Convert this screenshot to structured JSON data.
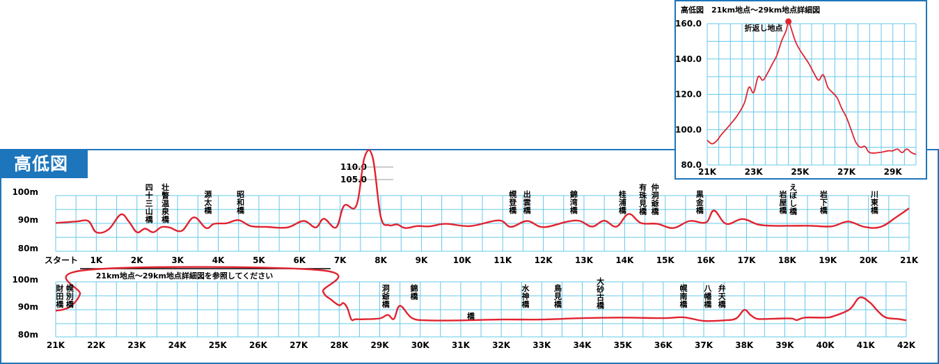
{
  "title": "高低図",
  "inset_title": "高低図　21km地点〜29km地点詳細図",
  "chart_data": [
    {
      "type": "line",
      "title": "",
      "x_tick_labels": [
        "スタート",
        "1K",
        "2K",
        "3K",
        "4K",
        "5K",
        "6K",
        "7K",
        "8K",
        "9K",
        "10K",
        "11K",
        "12K",
        "13K",
        "14K",
        "15K",
        "16K",
        "17K",
        "18K",
        "19K",
        "20K",
        "21K"
      ],
      "y_tick_labels": [
        "100m",
        "90m",
        "80m"
      ],
      "ylim": [
        80,
        100
      ],
      "xlim": [
        0,
        21
      ],
      "series_color": "#e02330",
      "x": [
        0,
        0.5,
        0.8,
        1,
        1.3,
        1.6,
        1.8,
        2,
        2.2,
        2.4,
        2.6,
        2.8,
        3.1,
        3.4,
        3.7,
        3.9,
        4.2,
        4.5,
        4.8,
        5.2,
        5.7,
        6.1,
        6.4,
        6.6,
        6.9,
        7.1,
        7.4,
        7.6,
        7.8,
        8,
        8.2,
        8.4,
        8.6,
        8.9,
        9.2,
        9.6,
        10.2,
        10.9,
        11.2,
        11.6,
        12,
        12.6,
        12.9,
        13.2,
        13.5,
        13.8,
        14.1,
        14.4,
        14.8,
        15.2,
        15.6,
        16,
        16.2,
        16.5,
        16.9,
        17.3,
        17.7,
        18.1,
        18.6,
        19.1,
        19.5,
        19.9,
        20.3,
        20.7,
        21
      ],
      "y": [
        88.8,
        89.3,
        89.5,
        85.5,
        86.5,
        91.8,
        89.3,
        85.5,
        86.8,
        85.5,
        87.3,
        87.2,
        86,
        90.8,
        87,
        88.5,
        88.7,
        89.8,
        87.7,
        87.4,
        87.2,
        89.5,
        87.2,
        90.3,
        87.2,
        95,
        95,
        108.5,
        108.5,
        91,
        88,
        88.3,
        87,
        87.7,
        87.6,
        88.5,
        87.7,
        89.7,
        87.4,
        89.5,
        87.3,
        89.3,
        89.5,
        87.5,
        89.6,
        87.5,
        92,
        88.8,
        88.5,
        87,
        89.5,
        89,
        93.2,
        88.5,
        90.2,
        88.2,
        87.8,
        87.8,
        87.8,
        87.6,
        89.3,
        87.4,
        87.4,
        91,
        94
      ],
      "annotations": [
        {
          "label": "110.0",
          "y": 110.0
        },
        {
          "label": "105.0",
          "y": 105.0
        }
      ],
      "landmarks": [
        {
          "name": "四十三山橋",
          "x": 2.3
        },
        {
          "name": "壮瞥温泉橋",
          "x": 2.7
        },
        {
          "name": "源太橋",
          "x": 3.75
        },
        {
          "name": "昭和橋",
          "x": 4.55
        },
        {
          "name": "幌登橋",
          "x": 11.25
        },
        {
          "name": "出雲橋",
          "x": 11.6
        },
        {
          "name": "錦湾橋",
          "x": 12.75
        },
        {
          "name": "桂浦橋",
          "x": 13.95
        },
        {
          "name": "有珠見橋",
          "x": 14.45
        },
        {
          "name": "仲洞爺橋",
          "x": 14.75
        },
        {
          "name": "黒金橋",
          "x": 15.85
        },
        {
          "name": "岩屋橋",
          "x": 17.9
        },
        {
          "name": "えぼし橋",
          "x": 18.15
        },
        {
          "name": "岩下橋",
          "x": 18.9
        },
        {
          "name": "川東橋",
          "x": 20.15
        }
      ]
    },
    {
      "type": "line",
      "title": "",
      "x_tick_labels": [
        "21K",
        "22K",
        "23K",
        "24K",
        "25K",
        "26K",
        "27K",
        "28K",
        "29K",
        "30K",
        "31K",
        "32K",
        "33K",
        "34K",
        "35K",
        "36K",
        "37K",
        "38K",
        "39K",
        "40K",
        "41K",
        "42K"
      ],
      "y_tick_labels": [
        "100m",
        "90m",
        "80m"
      ],
      "ylim": [
        80,
        100
      ],
      "xlim": [
        21,
        42
      ],
      "series_color": "#e02330",
      "note_label": "21km地点〜29km地点詳細図を参照してください",
      "x": [
        21,
        21.2,
        21.4,
        21.6,
        21.75,
        27.5,
        27.6,
        27.8,
        28,
        28.1,
        28.2,
        28.3,
        28.4,
        28.6,
        29,
        29.2,
        29.35,
        29.5,
        29.8,
        30.2,
        31,
        32,
        33,
        34,
        35,
        36,
        36.5,
        37,
        37.5,
        37.8,
        38,
        38.15,
        38.3,
        38.5,
        39,
        39.2,
        39.3,
        39.5,
        40,
        40.2,
        40.6,
        40.85,
        41.1,
        41.3,
        41.5,
        41.8,
        42
      ],
      "y": [
        89,
        89.5,
        91,
        95,
        102,
        102,
        96,
        93,
        91,
        91.8,
        90,
        85.8,
        85.9,
        85.9,
        86.2,
        87.5,
        86,
        90.8,
        86.3,
        85.5,
        85.5,
        85.8,
        85.8,
        86.3,
        86.5,
        86.3,
        86.6,
        85.3,
        85.5,
        86.2,
        89.3,
        87.5,
        86.1,
        86,
        86.2,
        86.1,
        85.6,
        86.5,
        86.5,
        87,
        89.5,
        93.8,
        92,
        88.8,
        86.5,
        86,
        85.5
      ],
      "landmarks": [
        {
          "name": "幌別橋",
          "x": 21.35
        },
        {
          "name": "財田橋",
          "x": 21.1
        },
        {
          "name": "洞爺橋",
          "x": 29.15
        },
        {
          "name": "錦橋",
          "x": 29.85
        },
        {
          "name": "橋",
          "x": 31.25
        },
        {
          "name": "水神橋",
          "x": 32.6
        },
        {
          "name": "鳥見橋",
          "x": 33.4
        },
        {
          "name": "大砂古橋",
          "x": 34.45
        },
        {
          "name": "幌南橋",
          "x": 36.5
        },
        {
          "name": "八幡橋",
          "x": 37.1
        },
        {
          "name": "弁天橋",
          "x": 37.45
        }
      ]
    },
    {
      "type": "line",
      "title": "高低図　21km地点〜29km地点詳細図",
      "x_tick_labels": [
        "21K",
        "23K",
        "25K",
        "27K",
        "29K"
      ],
      "x_tick_values": [
        21,
        23,
        25,
        27,
        29
      ],
      "y_tick_labels": [
        "160.0",
        "140.0",
        "120.0",
        "100.0",
        "80.0"
      ],
      "y_tick_values": [
        160,
        140,
        120,
        100,
        80
      ],
      "ylim": [
        80,
        160
      ],
      "xlim": [
        21,
        30
      ],
      "series_color": "#e02330",
      "peak_label": "折返し地点",
      "peak": {
        "x": 24.5,
        "y": 162
      },
      "x": [
        21,
        21.2,
        21.4,
        21.6,
        21.8,
        22,
        22.3,
        22.6,
        22.8,
        23,
        23.2,
        23.4,
        23.6,
        23.8,
        24,
        24.2,
        24.4,
        24.5,
        24.6,
        24.8,
        25,
        25.2,
        25.4,
        25.6,
        25.8,
        26,
        26.2,
        26.4,
        26.6,
        26.8,
        27,
        27.2,
        27.4,
        27.6,
        27.8,
        28,
        28.4,
        28.8,
        29,
        29.2,
        29.4,
        29.6,
        29.8,
        30
      ],
      "y": [
        94,
        92,
        93.5,
        97,
        100,
        103,
        108,
        115,
        124,
        121,
        130,
        128,
        132,
        137,
        142,
        150,
        156,
        162,
        158,
        150,
        145,
        141,
        137,
        132,
        128,
        131,
        124,
        121,
        118,
        112,
        107,
        100,
        93,
        90,
        90.5,
        87,
        87,
        88,
        88,
        89,
        87,
        89,
        87,
        86
      ]
    }
  ]
}
